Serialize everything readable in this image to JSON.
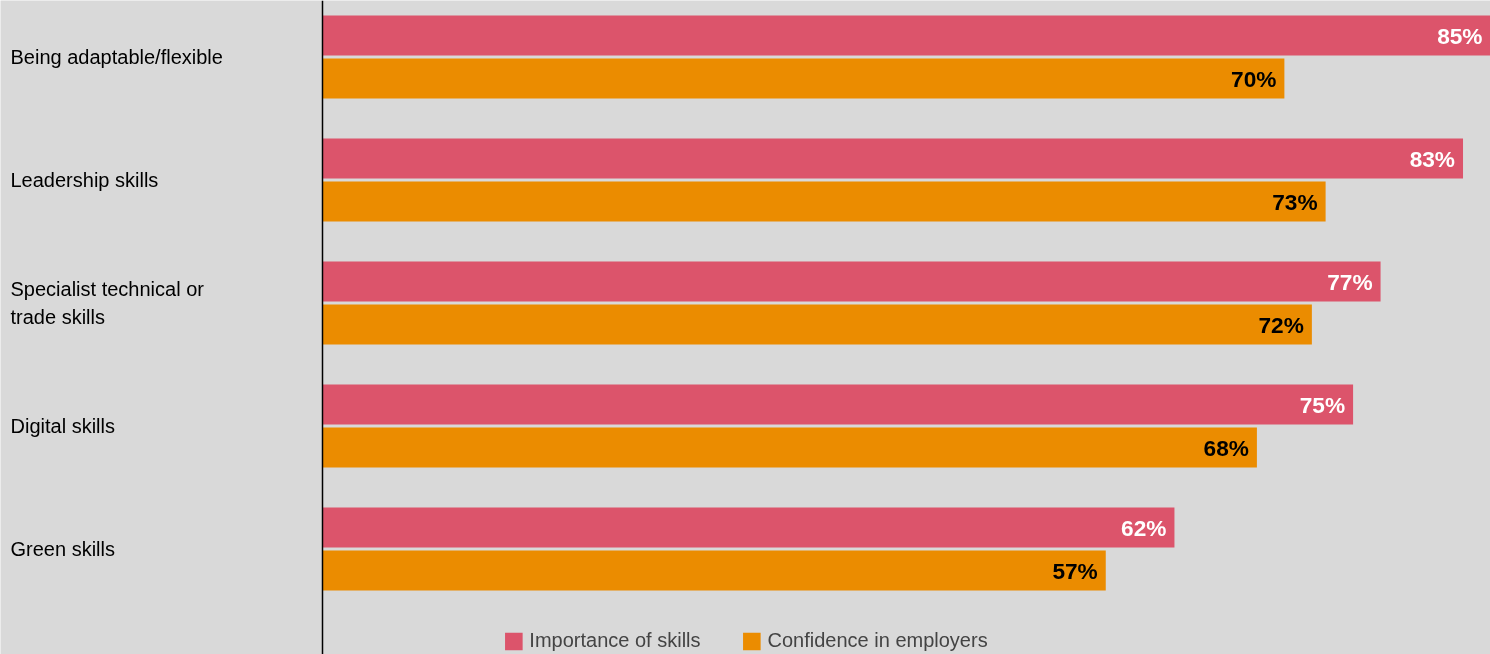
{
  "chart_data": {
    "type": "bar",
    "orientation": "horizontal",
    "categories": [
      "Being adaptable/flexible",
      "Leadership skills",
      "Specialist technical or trade skills",
      "Digital skills",
      "Green skills"
    ],
    "series": [
      {
        "name": "Importance of skills",
        "color": "#dc546b",
        "values": [
          85,
          83,
          77,
          75,
          62
        ],
        "value_labels": [
          "85%",
          "83%",
          "77%",
          "75%",
          "62%"
        ]
      },
      {
        "name": "Confidence in employers",
        "color": "#eb8c00",
        "values": [
          70,
          73,
          72,
          68,
          57
        ],
        "value_labels": [
          "70%",
          "73%",
          "72%",
          "68%",
          "57%"
        ]
      }
    ],
    "legend": "bottom",
    "grid": false
  }
}
